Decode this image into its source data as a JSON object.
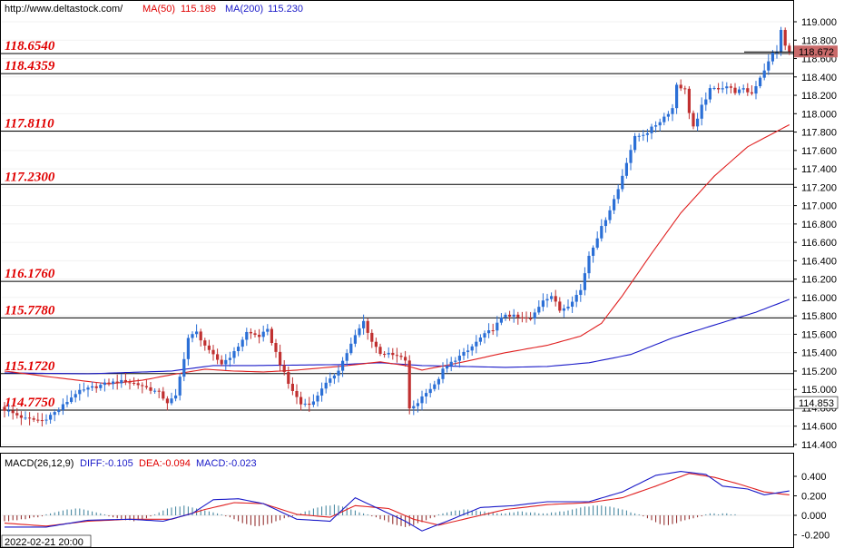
{
  "header": {
    "site": "http://www.deltastock.com/",
    "ma50_label": "MA(50)",
    "ma50_value": "115.189",
    "ma200_label": "MA(200)",
    "ma200_value": "115.230"
  },
  "macd_header": {
    "name": "MACD(26,12,9)",
    "diff": "DIFF:-0.105",
    "dea": "DEA:-0.094",
    "macd": "MACD:-0.023"
  },
  "footer": {
    "timestamp": "2022-02-21 20:00"
  },
  "colors": {
    "up": "#2b6fd6",
    "down": "#c03030",
    "ma50": "#e02020",
    "ma200": "#1a1ac8",
    "level_line": "#000000",
    "level_text": "#e00000",
    "current_price_bg": "#c96a6a"
  },
  "chart_data": [
    {
      "type": "candlestick",
      "ylim": [
        114.3,
        119.2
      ],
      "yticks": [
        "119.000",
        "118.800",
        "118.600",
        "118.400",
        "118.200",
        "118.000",
        "117.800",
        "117.600",
        "117.400",
        "117.200",
        "117.000",
        "116.800",
        "116.600",
        "116.400",
        "116.200",
        "116.000",
        "115.800",
        "115.600",
        "115.400",
        "115.200",
        "115.000",
        "114.800",
        "114.600",
        "114.400"
      ],
      "levels": [
        "118.6540",
        "118.4359",
        "117.8110",
        "117.2300",
        "116.1760",
        "115.7780",
        "115.1720",
        "114.7750"
      ],
      "current_price": "118.672",
      "marker_price": "114.853",
      "close_path": [
        [
          0,
          114.78
        ],
        [
          5,
          114.68
        ],
        [
          9,
          114.66
        ],
        [
          13,
          114.78
        ],
        [
          17,
          114.96
        ],
        [
          21,
          115.02
        ],
        [
          25,
          115.07
        ],
        [
          29,
          115.09
        ],
        [
          33,
          115.04
        ],
        [
          37,
          114.96
        ],
        [
          39,
          114.86
        ],
        [
          41,
          114.92
        ],
        [
          44,
          115.56
        ],
        [
          46,
          115.62
        ],
        [
          49,
          115.41
        ],
        [
          52,
          115.28
        ],
        [
          55,
          115.4
        ],
        [
          58,
          115.62
        ],
        [
          61,
          115.58
        ],
        [
          63,
          115.64
        ],
        [
          66,
          115.28
        ],
        [
          68,
          115.06
        ],
        [
          71,
          114.84
        ],
        [
          74,
          114.86
        ],
        [
          76,
          115.02
        ],
        [
          78,
          115.1
        ],
        [
          80,
          115.22
        ],
        [
          82,
          115.4
        ],
        [
          84,
          115.58
        ],
        [
          86,
          115.74
        ],
        [
          88,
          115.52
        ],
        [
          90,
          115.4
        ],
        [
          92,
          115.38
        ],
        [
          94,
          115.36
        ],
        [
          96,
          115.32
        ],
        [
          97,
          114.78
        ],
        [
          99,
          114.86
        ],
        [
          101,
          114.98
        ],
        [
          103,
          115.04
        ],
        [
          105,
          115.21
        ],
        [
          108,
          115.33
        ],
        [
          111,
          115.42
        ],
        [
          114,
          115.56
        ],
        [
          117,
          115.66
        ],
        [
          120,
          115.82
        ],
        [
          123,
          115.78
        ],
        [
          126,
          115.76
        ],
        [
          129,
          115.98
        ],
        [
          131,
          116.02
        ],
        [
          133,
          115.86
        ],
        [
          135,
          115.92
        ],
        [
          138,
          116.08
        ],
        [
          140,
          116.46
        ],
        [
          142,
          116.66
        ],
        [
          145,
          116.96
        ],
        [
          147,
          117.18
        ],
        [
          149,
          117.48
        ],
        [
          151,
          117.74
        ],
        [
          154,
          117.8
        ],
        [
          157,
          117.92
        ],
        [
          160,
          118.06
        ],
        [
          161,
          118.32
        ],
        [
          163,
          118.26
        ],
        [
          164,
          118.02
        ],
        [
          165,
          117.86
        ],
        [
          166,
          117.93
        ],
        [
          167,
          118.08
        ],
        [
          169,
          118.26
        ],
        [
          171,
          118.28
        ],
        [
          173,
          118.3
        ],
        [
          175,
          118.24
        ],
        [
          177,
          118.26
        ],
        [
          179,
          118.22
        ],
        [
          181,
          118.4
        ],
        [
          183,
          118.56
        ],
        [
          184,
          118.66
        ],
        [
          185,
          118.68
        ],
        [
          186,
          118.9
        ],
        [
          187,
          118.74
        ],
        [
          188,
          118.67
        ]
      ],
      "ma50_path": [
        [
          0,
          115.2
        ],
        [
          12,
          115.13
        ],
        [
          25,
          115.06
        ],
        [
          33,
          115.1
        ],
        [
          40,
          115.16
        ],
        [
          48,
          115.22
        ],
        [
          55,
          115.2
        ],
        [
          62,
          115.19
        ],
        [
          70,
          115.21
        ],
        [
          80,
          115.25
        ],
        [
          90,
          115.3
        ],
        [
          96,
          115.26
        ],
        [
          100,
          115.21
        ],
        [
          110,
          115.3
        ],
        [
          120,
          115.4
        ],
        [
          130,
          115.48
        ],
        [
          138,
          115.58
        ],
        [
          143,
          115.72
        ],
        [
          148,
          116.02
        ],
        [
          155,
          116.48
        ],
        [
          162,
          116.92
        ],
        [
          170,
          117.32
        ],
        [
          178,
          117.64
        ],
        [
          188,
          117.88
        ]
      ],
      "ma200_path": [
        [
          0,
          115.18
        ],
        [
          20,
          115.17
        ],
        [
          40,
          115.2
        ],
        [
          50,
          115.26
        ],
        [
          60,
          115.26
        ],
        [
          80,
          115.27
        ],
        [
          90,
          115.29
        ],
        [
          100,
          115.26
        ],
        [
          110,
          115.25
        ],
        [
          120,
          115.24
        ],
        [
          130,
          115.25
        ],
        [
          140,
          115.29
        ],
        [
          150,
          115.38
        ],
        [
          160,
          115.56
        ],
        [
          170,
          115.7
        ],
        [
          180,
          115.84
        ],
        [
          188,
          115.98
        ]
      ]
    },
    {
      "type": "macd",
      "ylim": [
        -0.22,
        0.52
      ],
      "yticks": [
        "0.400",
        "0.200",
        "0.000",
        "-0.200"
      ],
      "diff_path": [
        [
          0,
          -0.12
        ],
        [
          10,
          -0.12
        ],
        [
          20,
          -0.05
        ],
        [
          30,
          -0.04
        ],
        [
          38,
          -0.06
        ],
        [
          45,
          0.02
        ],
        [
          50,
          0.16
        ],
        [
          56,
          0.17
        ],
        [
          62,
          0.12
        ],
        [
          70,
          -0.04
        ],
        [
          78,
          -0.06
        ],
        [
          84,
          0.18
        ],
        [
          90,
          0.06
        ],
        [
          96,
          -0.06
        ],
        [
          100,
          -0.16
        ],
        [
          106,
          -0.06
        ],
        [
          114,
          0.08
        ],
        [
          122,
          0.1
        ],
        [
          130,
          0.14
        ],
        [
          140,
          0.14
        ],
        [
          148,
          0.24
        ],
        [
          156,
          0.41
        ],
        [
          162,
          0.45
        ],
        [
          168,
          0.42
        ],
        [
          172,
          0.3
        ],
        [
          178,
          0.27
        ],
        [
          182,
          0.21
        ],
        [
          188,
          0.25
        ]
      ],
      "dea_path": [
        [
          0,
          -0.08
        ],
        [
          10,
          -0.11
        ],
        [
          20,
          -0.06
        ],
        [
          30,
          -0.04
        ],
        [
          40,
          -0.04
        ],
        [
          48,
          0.06
        ],
        [
          55,
          0.13
        ],
        [
          62,
          0.12
        ],
        [
          70,
          0.01
        ],
        [
          78,
          -0.02
        ],
        [
          84,
          0.1
        ],
        [
          92,
          0.07
        ],
        [
          98,
          -0.04
        ],
        [
          104,
          -0.1
        ],
        [
          110,
          -0.04
        ],
        [
          120,
          0.06
        ],
        [
          130,
          0.11
        ],
        [
          140,
          0.13
        ],
        [
          148,
          0.18
        ],
        [
          156,
          0.3
        ],
        [
          164,
          0.43
        ],
        [
          170,
          0.39
        ],
        [
          176,
          0.32
        ],
        [
          182,
          0.24
        ],
        [
          188,
          0.21
        ]
      ],
      "histogram": [
        -0.06,
        -0.06,
        -0.05,
        -0.05,
        -0.04,
        -0.04,
        -0.03,
        -0.02,
        -0.02,
        -0.01,
        0.01,
        0.02,
        0.03,
        0.04,
        0.05,
        0.06,
        0.06,
        0.07,
        0.07,
        0.06,
        0.05,
        0.04,
        0.03,
        0.02,
        0.01,
        -0.01,
        -0.02,
        -0.03,
        -0.04,
        -0.05,
        -0.05,
        -0.06,
        -0.05,
        -0.04,
        -0.03,
        -0.01,
        0.01,
        0.03,
        0.05,
        0.07,
        0.08,
        0.09,
        0.09,
        0.1,
        0.09,
        0.08,
        0.07,
        0.06,
        0.05,
        0.04,
        0.03,
        0.02,
        0.01,
        -0.01,
        -0.02,
        -0.04,
        -0.06,
        -0.08,
        -0.09,
        -0.1,
        -0.11,
        -0.11,
        -0.1,
        -0.09,
        -0.08,
        -0.06,
        -0.05,
        -0.03,
        -0.02,
        -0.01,
        0.01,
        0.02,
        0.04,
        0.05,
        0.07,
        0.08,
        0.09,
        0.1,
        0.1,
        0.11,
        0.1,
        0.09,
        0.08,
        0.06,
        0.05,
        0.03,
        0.02,
        0.01,
        -0.01,
        -0.02,
        -0.04,
        -0.05,
        -0.07,
        -0.09,
        -0.1,
        -0.11,
        -0.12,
        -0.11,
        -0.1,
        -0.08,
        -0.07,
        -0.05,
        -0.03,
        -0.02,
        0.01,
        0.02,
        0.03,
        0.04,
        0.05,
        0.05,
        0.06,
        0.06,
        0.05,
        0.05,
        0.04,
        0.04,
        0.03,
        0.03,
        0.02,
        0.02,
        0.02,
        0.03,
        0.03,
        0.04,
        0.04,
        0.03,
        0.03,
        0.03,
        0.02,
        0.02,
        0.02,
        0.03,
        0.03,
        0.04,
        0.04,
        0.05,
        0.06,
        0.07,
        0.08,
        0.09,
        0.09,
        0.1,
        0.1,
        0.1,
        0.09,
        0.09,
        0.08,
        0.07,
        0.06,
        0.05,
        0.03,
        0.02,
        0.01,
        -0.01,
        -0.03,
        -0.05,
        -0.07,
        -0.09,
        -0.1,
        -0.1,
        -0.09,
        -0.08,
        -0.06,
        -0.05,
        -0.04,
        -0.03,
        -0.02,
        -0.01,
        0.01,
        0.02,
        0.02,
        0.01,
        0.02,
        0.02,
        0.01,
        0.01
      ]
    }
  ]
}
